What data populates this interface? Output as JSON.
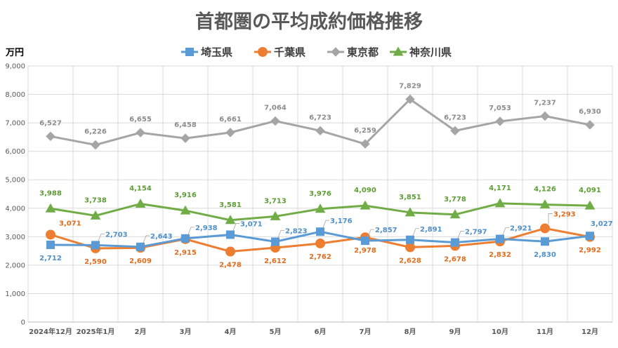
{
  "chart_data": {
    "type": "line",
    "title": "首都圏の平均成約価格推移",
    "ylabel": "万円",
    "xlabel": "",
    "ylim": [
      0,
      9000
    ],
    "ytick_step": 1000,
    "grid": true,
    "legend_position": "top",
    "categories": [
      "2024年12月",
      "2025年1月",
      "2月",
      "3月",
      "4月",
      "5月",
      "6月",
      "7月",
      "8月",
      "9月",
      "10月",
      "11月",
      "12月"
    ],
    "series": [
      {
        "name": "埼玉県",
        "color": "#5B9BD5",
        "marker": "square",
        "values": [
          2712,
          2703,
          2643,
          2938,
          3071,
          2823,
          3176,
          2857,
          2891,
          2797,
          2921,
          2830,
          3027
        ],
        "labels": [
          "2,712",
          "2,703",
          "2,643",
          "2,938",
          "3,071",
          "2,823",
          "3,176",
          "2,857",
          "2,891",
          "2,797",
          "2,921",
          "2,830",
          "3,027"
        ]
      },
      {
        "name": "千葉県",
        "color": "#ED7D31",
        "marker": "circle",
        "values": [
          3071,
          2590,
          2609,
          2915,
          2478,
          2612,
          2762,
          2978,
          2628,
          2678,
          2832,
          3293,
          2992
        ],
        "labels": [
          "3,071",
          "2,590",
          "2,609",
          "2,915",
          "2,478",
          "2,612",
          "2,762",
          "2,978",
          "2,628",
          "2,678",
          "2,832",
          "3,293",
          "2,992"
        ]
      },
      {
        "name": "東京都",
        "color": "#A5A5A5",
        "marker": "diamond",
        "values": [
          6527,
          6226,
          6655,
          6458,
          6661,
          7064,
          6723,
          6259,
          7829,
          6723,
          7053,
          7237,
          6930
        ],
        "labels": [
          "6,527",
          "6,226",
          "6,655",
          "6,458",
          "6,661",
          "7,064",
          "6,723",
          "6,259",
          "7,829",
          "6,723",
          "7,053",
          "7,237",
          "6,930"
        ]
      },
      {
        "name": "神奈川県",
        "color": "#70AD47",
        "marker": "triangle",
        "values": [
          3988,
          3738,
          4154,
          3916,
          3581,
          3713,
          3976,
          4090,
          3851,
          3778,
          4171,
          4126,
          4091
        ],
        "labels": [
          "3,988",
          "3,738",
          "4,154",
          "3,916",
          "3,581",
          "3,713",
          "3,976",
          "4,090",
          "3,851",
          "3,778",
          "4,171",
          "4,126",
          "4,091"
        ]
      }
    ]
  }
}
